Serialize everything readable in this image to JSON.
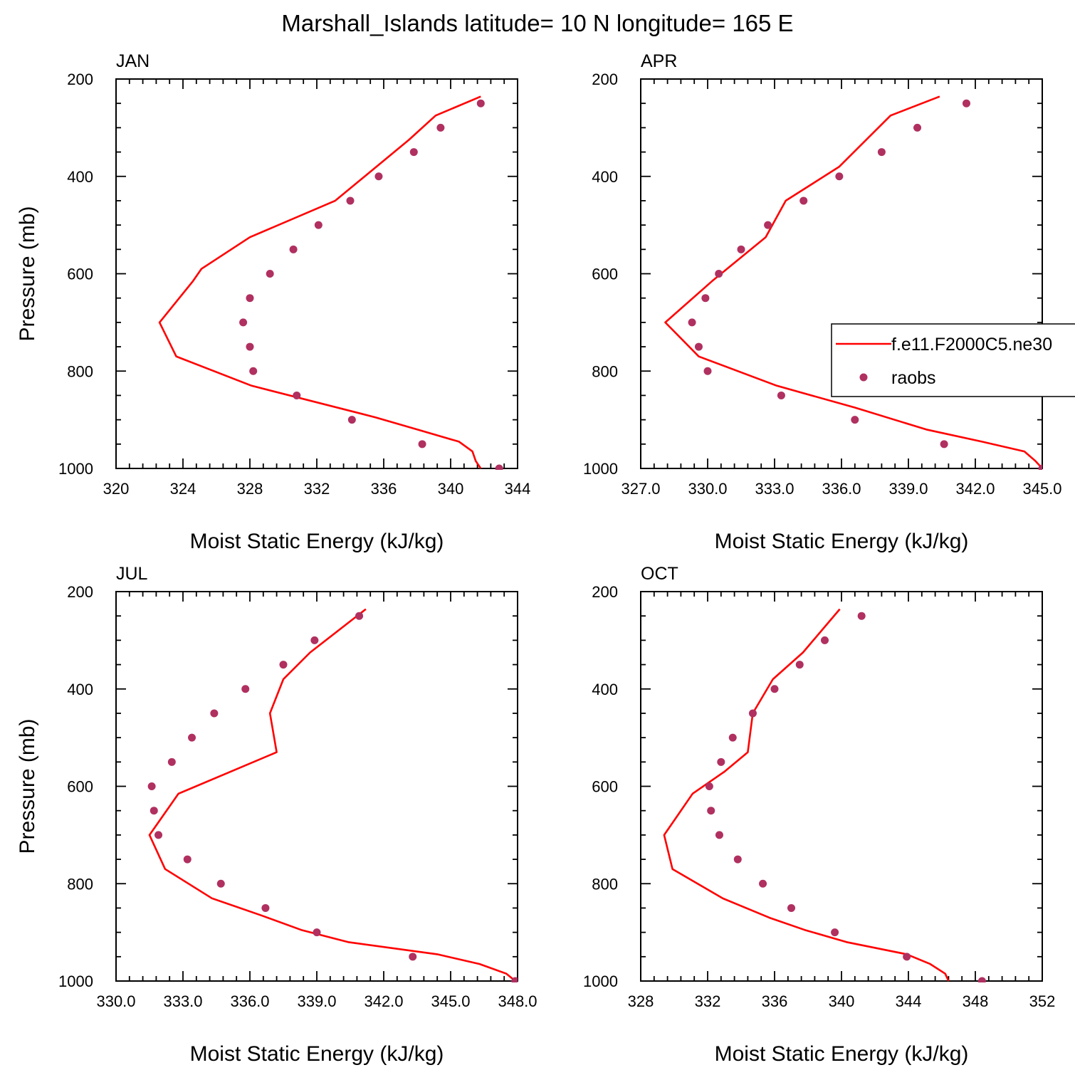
{
  "figure": {
    "title": "Marshall_Islands  latitude= 10 N longitude= 165 E"
  },
  "legend": {
    "items": [
      {
        "label": "f.e11.F2000C5.ne30",
        "style": "line",
        "color": "#ff0000"
      },
      {
        "label": "raobs",
        "style": "marker",
        "color": "#b03060"
      }
    ],
    "panel": "APR",
    "placement": "right, overlapping APR panel and clipped at figure edge"
  },
  "colors": {
    "model_line": "#ff0000",
    "raobs_marker": "#b03060",
    "axes": "#000000"
  },
  "chart_data": [
    {
      "type": "line",
      "panel": "JAN",
      "title": "JAN",
      "xlabel": "Moist Static Energy (kJ/kg)",
      "ylabel": "Pressure (mb)",
      "xlim": [
        320,
        344
      ],
      "ylim": [
        1000,
        200
      ],
      "y_inverted": true,
      "xticks": [
        320,
        324,
        328,
        332,
        336,
        340,
        344
      ],
      "xtick_labels": [
        "320",
        "324",
        "328",
        "332",
        "336",
        "340",
        "344"
      ],
      "yticks": [
        200,
        400,
        600,
        800,
        1000
      ],
      "ytick_labels": [
        "200",
        "400",
        "600",
        "800",
        "1000"
      ],
      "series": [
        {
          "name": "f.e11.F2000C5.ne30",
          "style": "line",
          "x": [
            341.8,
            339.1,
            337.5,
            333.1,
            328.0,
            325.1,
            324.6,
            322.6,
            323.6,
            328.1,
            335.5,
            338.0,
            340.5,
            341.3,
            341.5,
            341.8
          ],
          "y": [
            236,
            275,
            325,
            450,
            525,
            590,
            615,
            700,
            770,
            830,
            895,
            920,
            945,
            965,
            985,
            1000
          ]
        },
        {
          "name": "raobs",
          "style": "marker",
          "x": [
            341.8,
            339.4,
            337.8,
            335.7,
            334.0,
            332.1,
            330.6,
            329.2,
            328.0,
            327.6,
            328.0,
            328.2,
            330.8,
            334.1,
            338.3,
            342.9
          ],
          "y": [
            250,
            300,
            350,
            400,
            450,
            500,
            550,
            600,
            650,
            700,
            750,
            800,
            850,
            900,
            950,
            1000
          ]
        }
      ]
    },
    {
      "type": "line",
      "panel": "APR",
      "title": "APR",
      "xlabel": "Moist Static Energy (kJ/kg)",
      "ylabel": "",
      "xlim": [
        327,
        345
      ],
      "ylim": [
        1000,
        200
      ],
      "y_inverted": true,
      "xticks": [
        327,
        330,
        333,
        336,
        339,
        342,
        345
      ],
      "xtick_labels": [
        "327.0",
        "330.0",
        "333.0",
        "336.0",
        "339.0",
        "342.0",
        "345.0"
      ],
      "yticks": [
        200,
        400,
        600,
        800,
        1000
      ],
      "ytick_labels": [
        "200",
        "400",
        "600",
        "800",
        "1000"
      ],
      "series": [
        {
          "name": "f.e11.F2000C5.ne30",
          "style": "line",
          "x": [
            340.4,
            338.2,
            335.9,
            333.5,
            332.6,
            331.4,
            330.2,
            328.1,
            329.6,
            333.1,
            336.6,
            339.8,
            342.3,
            344.2,
            344.7,
            345.0
          ],
          "y": [
            236,
            275,
            380,
            450,
            525,
            570,
            615,
            700,
            770,
            830,
            875,
            920,
            945,
            965,
            985,
            1000
          ]
        },
        {
          "name": "raobs",
          "style": "marker",
          "x": [
            341.6,
            339.4,
            337.8,
            335.9,
            334.3,
            332.7,
            331.5,
            330.5,
            329.9,
            329.3,
            329.6,
            330.0,
            333.3,
            336.6,
            340.6,
            345.0
          ],
          "y": [
            250,
            300,
            350,
            400,
            450,
            500,
            550,
            600,
            650,
            700,
            750,
            800,
            850,
            900,
            950,
            1000
          ]
        }
      ]
    },
    {
      "type": "line",
      "panel": "JUL",
      "title": "JUL",
      "xlabel": "Moist Static Energy (kJ/kg)",
      "ylabel": "Pressure (mb)",
      "xlim": [
        330,
        348
      ],
      "ylim": [
        1000,
        200
      ],
      "y_inverted": true,
      "xticks": [
        330,
        333,
        336,
        339,
        342,
        345,
        348
      ],
      "xtick_labels": [
        "330.0",
        "333.0",
        "336.0",
        "339.0",
        "342.0",
        "345.0",
        "348.0"
      ],
      "yticks": [
        200,
        400,
        600,
        800,
        1000
      ],
      "ytick_labels": [
        "200",
        "400",
        "600",
        "800",
        "1000"
      ],
      "series": [
        {
          "name": "f.e11.F2000C5.ne30",
          "style": "line",
          "x": [
            341.2,
            338.7,
            337.5,
            336.9,
            337.2,
            332.8,
            331.5,
            332.2,
            334.3,
            336.5,
            338.3,
            340.4,
            344.4,
            346.3,
            347.5,
            347.9
          ],
          "y": [
            236,
            325,
            380,
            450,
            530,
            615,
            700,
            770,
            830,
            865,
            895,
            920,
            945,
            965,
            985,
            1000
          ]
        },
        {
          "name": "raobs",
          "style": "marker",
          "x": [
            340.9,
            338.9,
            337.5,
            335.8,
            334.4,
            333.4,
            332.5,
            331.6,
            331.7,
            331.9,
            333.2,
            334.7,
            336.7,
            339.0,
            343.3,
            347.9
          ],
          "y": [
            250,
            300,
            350,
            400,
            450,
            500,
            550,
            600,
            650,
            700,
            750,
            800,
            850,
            900,
            950,
            1000
          ]
        }
      ]
    },
    {
      "type": "line",
      "panel": "OCT",
      "title": "OCT",
      "xlabel": "Moist Static Energy (kJ/kg)",
      "ylabel": "",
      "xlim": [
        328,
        352
      ],
      "ylim": [
        1000,
        200
      ],
      "y_inverted": true,
      "xticks": [
        328,
        332,
        336,
        340,
        344,
        348,
        352
      ],
      "xtick_labels": [
        "328",
        "332",
        "336",
        "340",
        "344",
        "348",
        "352"
      ],
      "yticks": [
        200,
        400,
        600,
        800,
        1000
      ],
      "ytick_labels": [
        "200",
        "400",
        "600",
        "800",
        "1000"
      ],
      "series": [
        {
          "name": "f.e11.F2000C5.ne30",
          "style": "line",
          "x": [
            339.9,
            337.7,
            335.9,
            334.7,
            334.4,
            333.0,
            331.1,
            329.4,
            329.9,
            332.9,
            335.7,
            337.8,
            340.3,
            343.9,
            345.3,
            346.2,
            346.4
          ],
          "y": [
            236,
            325,
            380,
            450,
            530,
            570,
            615,
            700,
            770,
            830,
            870,
            895,
            920,
            945,
            965,
            985,
            1000
          ]
        },
        {
          "name": "raobs",
          "style": "marker",
          "x": [
            341.2,
            339.0,
            337.5,
            336.0,
            334.7,
            333.5,
            332.8,
            332.1,
            332.2,
            332.7,
            333.8,
            335.3,
            337.0,
            339.6,
            343.9,
            348.4
          ],
          "y": [
            250,
            300,
            350,
            400,
            450,
            500,
            550,
            600,
            650,
            700,
            750,
            800,
            850,
            900,
            950,
            1000
          ]
        }
      ]
    }
  ]
}
